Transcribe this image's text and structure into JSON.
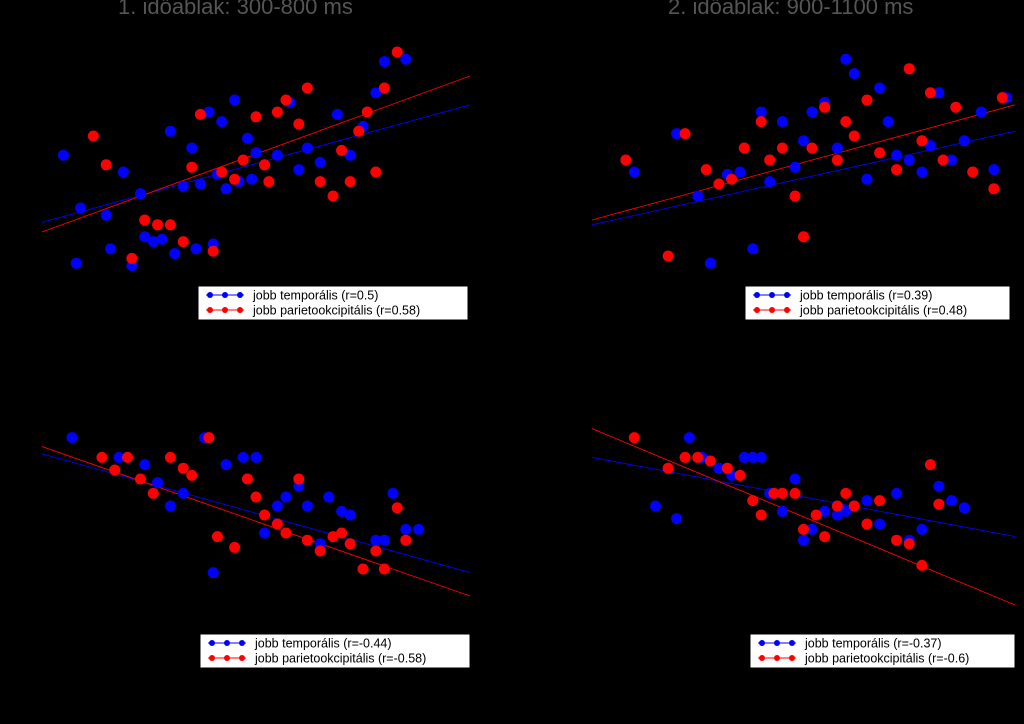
{
  "titles": [
    "1. időablak: 300-800 ms",
    "2. időablak: 900-1100 ms"
  ],
  "colors": {
    "background": "#000000",
    "blue": "#0000ff",
    "red": "#ff0000",
    "legend_bg": "#ffffff",
    "legend_text": "#000000"
  },
  "chart_data": [
    {
      "type": "scatter",
      "series": [
        {
          "name": "jobb temporális (r=0.5)",
          "color": "#0000ff",
          "x": [
            0.05,
            0.08,
            0.09,
            0.15,
            0.16,
            0.19,
            0.21,
            0.23,
            0.24,
            0.26,
            0.28,
            0.3,
            0.31,
            0.33,
            0.35,
            0.36,
            0.37,
            0.39,
            0.4,
            0.41,
            0.42,
            0.43,
            0.45,
            0.46,
            0.48,
            0.49,
            0.5,
            0.52,
            0.55,
            0.58,
            0.6,
            0.62,
            0.65,
            0.69,
            0.72,
            0.75,
            0.78,
            0.8,
            0.85
          ],
          "y": [
            0.52,
            0.07,
            0.3,
            0.27,
            0.13,
            0.45,
            0.06,
            0.36,
            0.18,
            0.16,
            0.17,
            0.62,
            0.11,
            0.39,
            0.55,
            0.13,
            0.4,
            0.7,
            0.15,
            0.44,
            0.66,
            0.38,
            0.75,
            0.41,
            0.59,
            0.42,
            0.53,
            0.48,
            0.52,
            0.74,
            0.46,
            0.55,
            0.49,
            0.69,
            0.52,
            0.64,
            0.78,
            0.91,
            0.92
          ],
          "trend": {
            "x": [
              0,
              1
            ],
            "y": [
              0.24,
              0.73
            ]
          }
        },
        {
          "name": "jobb parietookcipitális (r=0.58)",
          "color": "#ff0000",
          "x": [
            0.12,
            0.15,
            0.21,
            0.24,
            0.27,
            0.3,
            0.33,
            0.35,
            0.37,
            0.4,
            0.42,
            0.45,
            0.47,
            0.5,
            0.52,
            0.53,
            0.55,
            0.57,
            0.6,
            0.62,
            0.65,
            0.68,
            0.7,
            0.72,
            0.74,
            0.76,
            0.78,
            0.8,
            0.83
          ],
          "y": [
            0.6,
            0.48,
            0.09,
            0.25,
            0.23,
            0.23,
            0.16,
            0.47,
            0.69,
            0.12,
            0.45,
            0.42,
            0.5,
            0.68,
            0.48,
            0.41,
            0.7,
            0.75,
            0.65,
            0.8,
            0.41,
            0.35,
            0.54,
            0.41,
            0.62,
            0.7,
            0.45,
            0.8,
            0.95
          ],
          "trend": {
            "x": [
              0,
              1
            ],
            "y": [
              0.2,
              0.85
            ]
          }
        }
      ]
    },
    {
      "type": "scatter",
      "series": [
        {
          "name": "jobb temporális (r=0.39)",
          "color": "#0000ff",
          "x": [
            0.1,
            0.2,
            0.25,
            0.28,
            0.32,
            0.35,
            0.38,
            0.4,
            0.42,
            0.45,
            0.48,
            0.5,
            0.52,
            0.55,
            0.58,
            0.6,
            0.62,
            0.65,
            0.68,
            0.7,
            0.72,
            0.75,
            0.78,
            0.8,
            0.82,
            0.85,
            0.88,
            0.92,
            0.95,
            0.98
          ],
          "y": [
            0.45,
            0.61,
            0.35,
            0.07,
            0.44,
            0.45,
            0.13,
            0.7,
            0.41,
            0.66,
            0.47,
            0.58,
            0.7,
            0.74,
            0.55,
            0.92,
            0.86,
            0.42,
            0.8,
            0.66,
            0.52,
            0.5,
            0.45,
            0.56,
            0.78,
            0.5,
            0.58,
            0.7,
            0.46,
            0.76
          ],
          "trend": {
            "x": [
              0,
              1
            ],
            "y": [
              0.23,
              0.62
            ]
          }
        },
        {
          "name": "jobb parietookcipitális (r=0.48)",
          "color": "#ff0000",
          "x": [
            0.08,
            0.18,
            0.22,
            0.27,
            0.3,
            0.33,
            0.36,
            0.4,
            0.42,
            0.45,
            0.48,
            0.5,
            0.52,
            0.55,
            0.58,
            0.6,
            0.62,
            0.65,
            0.68,
            0.72,
            0.75,
            0.78,
            0.8,
            0.83,
            0.86,
            0.9,
            0.95,
            0.97
          ],
          "y": [
            0.5,
            0.1,
            0.61,
            0.46,
            0.4,
            0.42,
            0.55,
            0.66,
            0.5,
            0.55,
            0.35,
            0.18,
            0.55,
            0.72,
            0.5,
            0.66,
            0.6,
            0.75,
            0.53,
            0.46,
            0.88,
            0.58,
            0.78,
            0.5,
            0.72,
            0.45,
            0.38,
            0.76
          ],
          "trend": {
            "x": [
              0,
              1
            ],
            "y": [
              0.25,
              0.73
            ]
          }
        }
      ]
    },
    {
      "type": "scatter",
      "series": [
        {
          "name": "jobb temporális (r=-0.44)",
          "color": "#0000ff",
          "x": [
            0.07,
            0.18,
            0.24,
            0.27,
            0.3,
            0.33,
            0.38,
            0.4,
            0.43,
            0.47,
            0.5,
            0.52,
            0.55,
            0.57,
            0.6,
            0.62,
            0.65,
            0.67,
            0.7,
            0.72,
            0.75,
            0.78,
            0.8,
            0.82,
            0.85,
            0.88
          ],
          "y": [
            0.93,
            0.82,
            0.78,
            0.68,
            0.55,
            0.62,
            0.93,
            0.18,
            0.78,
            0.82,
            0.82,
            0.4,
            0.55,
            0.6,
            0.66,
            0.55,
            0.34,
            0.6,
            0.52,
            0.5,
            0.2,
            0.36,
            0.36,
            0.62,
            0.42,
            0.42
          ],
          "trend": {
            "x": [
              0,
              1
            ],
            "y": [
              0.84,
              0.18
            ]
          }
        },
        {
          "name": "jobb parietookcipitális (r=-0.58)",
          "color": "#ff0000",
          "x": [
            0.14,
            0.17,
            0.2,
            0.23,
            0.26,
            0.3,
            0.33,
            0.35,
            0.39,
            0.41,
            0.45,
            0.48,
            0.5,
            0.52,
            0.55,
            0.57,
            0.6,
            0.62,
            0.65,
            0.68,
            0.7,
            0.72,
            0.75,
            0.78,
            0.8,
            0.83,
            0.85
          ],
          "y": [
            0.82,
            0.75,
            0.82,
            0.7,
            0.62,
            0.82,
            0.76,
            0.72,
            0.93,
            0.38,
            0.32,
            0.7,
            0.6,
            0.5,
            0.45,
            0.4,
            0.7,
            0.36,
            0.3,
            0.38,
            0.4,
            0.34,
            0.2,
            0.3,
            0.2,
            0.54,
            0.36
          ],
          "trend": {
            "x": [
              0,
              1
            ],
            "y": [
              0.88,
              0.05
            ]
          }
        }
      ]
    },
    {
      "type": "scatter",
      "series": [
        {
          "name": "jobb temporális (r=-0.37)",
          "color": "#0000ff",
          "x": [
            0.15,
            0.2,
            0.23,
            0.26,
            0.3,
            0.33,
            0.36,
            0.38,
            0.4,
            0.42,
            0.45,
            0.48,
            0.5,
            0.52,
            0.55,
            0.58,
            0.6,
            0.62,
            0.65,
            0.68,
            0.72,
            0.75,
            0.78,
            0.82,
            0.85,
            0.88
          ],
          "y": [
            0.55,
            0.48,
            0.93,
            0.82,
            0.76,
            0.72,
            0.82,
            0.82,
            0.82,
            0.62,
            0.52,
            0.7,
            0.36,
            0.42,
            0.52,
            0.5,
            0.52,
            0.55,
            0.58,
            0.45,
            0.62,
            0.36,
            0.42,
            0.66,
            0.58,
            0.54
          ],
          "trend": {
            "x": [
              0,
              1
            ],
            "y": [
              0.82,
              0.38
            ]
          }
        },
        {
          "name": "jobb parietookcipitális (r=-0.6)",
          "color": "#ff0000",
          "x": [
            0.1,
            0.18,
            0.22,
            0.25,
            0.28,
            0.32,
            0.35,
            0.38,
            0.4,
            0.43,
            0.45,
            0.48,
            0.5,
            0.53,
            0.55,
            0.58,
            0.6,
            0.62,
            0.65,
            0.68,
            0.72,
            0.75,
            0.78,
            0.8,
            0.82
          ],
          "y": [
            0.93,
            0.76,
            0.82,
            0.82,
            0.8,
            0.76,
            0.72,
            0.58,
            0.5,
            0.62,
            0.62,
            0.62,
            0.42,
            0.5,
            0.38,
            0.55,
            0.62,
            0.55,
            0.45,
            0.58,
            0.36,
            0.34,
            0.22,
            0.78,
            0.56
          ],
          "trend": {
            "x": [
              0,
              1
            ],
            "y": [
              0.98,
              0.0
            ]
          }
        }
      ]
    }
  ]
}
